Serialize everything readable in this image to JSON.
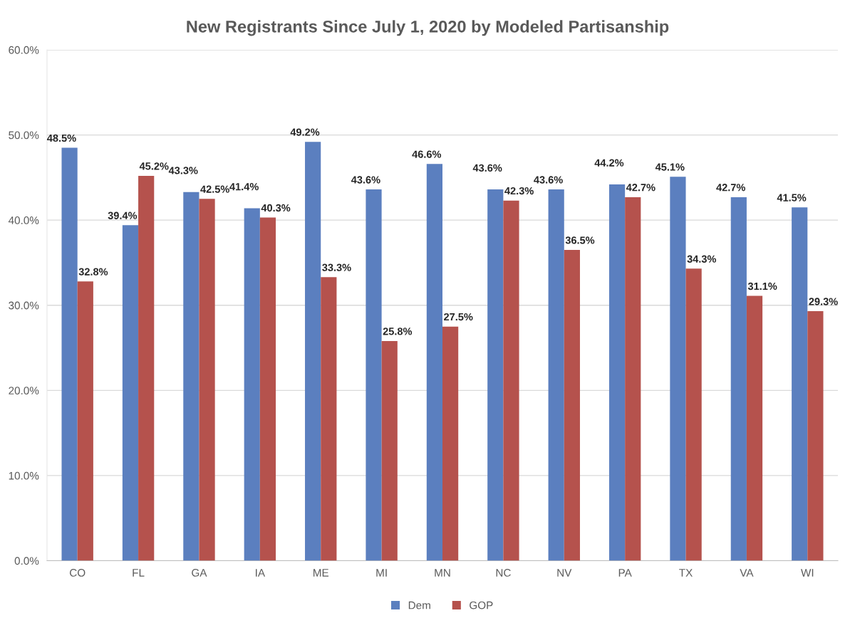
{
  "chart_data": {
    "type": "bar",
    "title": "New Registrants Since July 1, 2020 by Modeled Partisanship",
    "categories": [
      "CO",
      "FL",
      "GA",
      "IA",
      "ME",
      "MI",
      "MN",
      "NC",
      "NV",
      "PA",
      "TX",
      "VA",
      "WI"
    ],
    "series": [
      {
        "name": "Dem",
        "color": "#5b7fbf",
        "values": [
          48.5,
          39.4,
          43.3,
          41.4,
          49.2,
          43.6,
          46.6,
          43.6,
          43.6,
          44.2,
          45.1,
          42.7,
          41.5
        ],
        "value_labels": [
          "48.5%",
          "39.4%",
          "43.3%",
          "41.4%",
          "49.2%",
          "43.6%",
          "46.6%",
          "43.6%",
          "43.6%",
          "44.2%",
          "45.1%",
          "42.7%",
          "41.5%"
        ]
      },
      {
        "name": "GOP",
        "color": "#b5524d",
        "values": [
          32.8,
          45.2,
          42.5,
          40.3,
          33.3,
          25.8,
          27.5,
          42.3,
          36.5,
          42.7,
          34.3,
          31.1,
          29.3
        ],
        "value_labels": [
          "32.8%",
          "45.2%",
          "42.5%",
          "40.3%",
          "33.3%",
          "25.8%",
          "27.5%",
          "42.3%",
          "36.5%",
          "42.7%",
          "34.3%",
          "31.1%",
          "29.3%"
        ]
      }
    ],
    "ylim": [
      0,
      60
    ],
    "yticks": [
      {
        "value": 0,
        "label": "0.0%"
      },
      {
        "value": 10,
        "label": "10.0%"
      },
      {
        "value": 20,
        "label": "20.0%"
      },
      {
        "value": 30,
        "label": "30.0%"
      },
      {
        "value": 40,
        "label": "40.0%"
      },
      {
        "value": 50,
        "label": "50.0%"
      },
      {
        "value": 60,
        "label": "60.0%"
      }
    ],
    "grid": "y",
    "legend": "bottom"
  }
}
